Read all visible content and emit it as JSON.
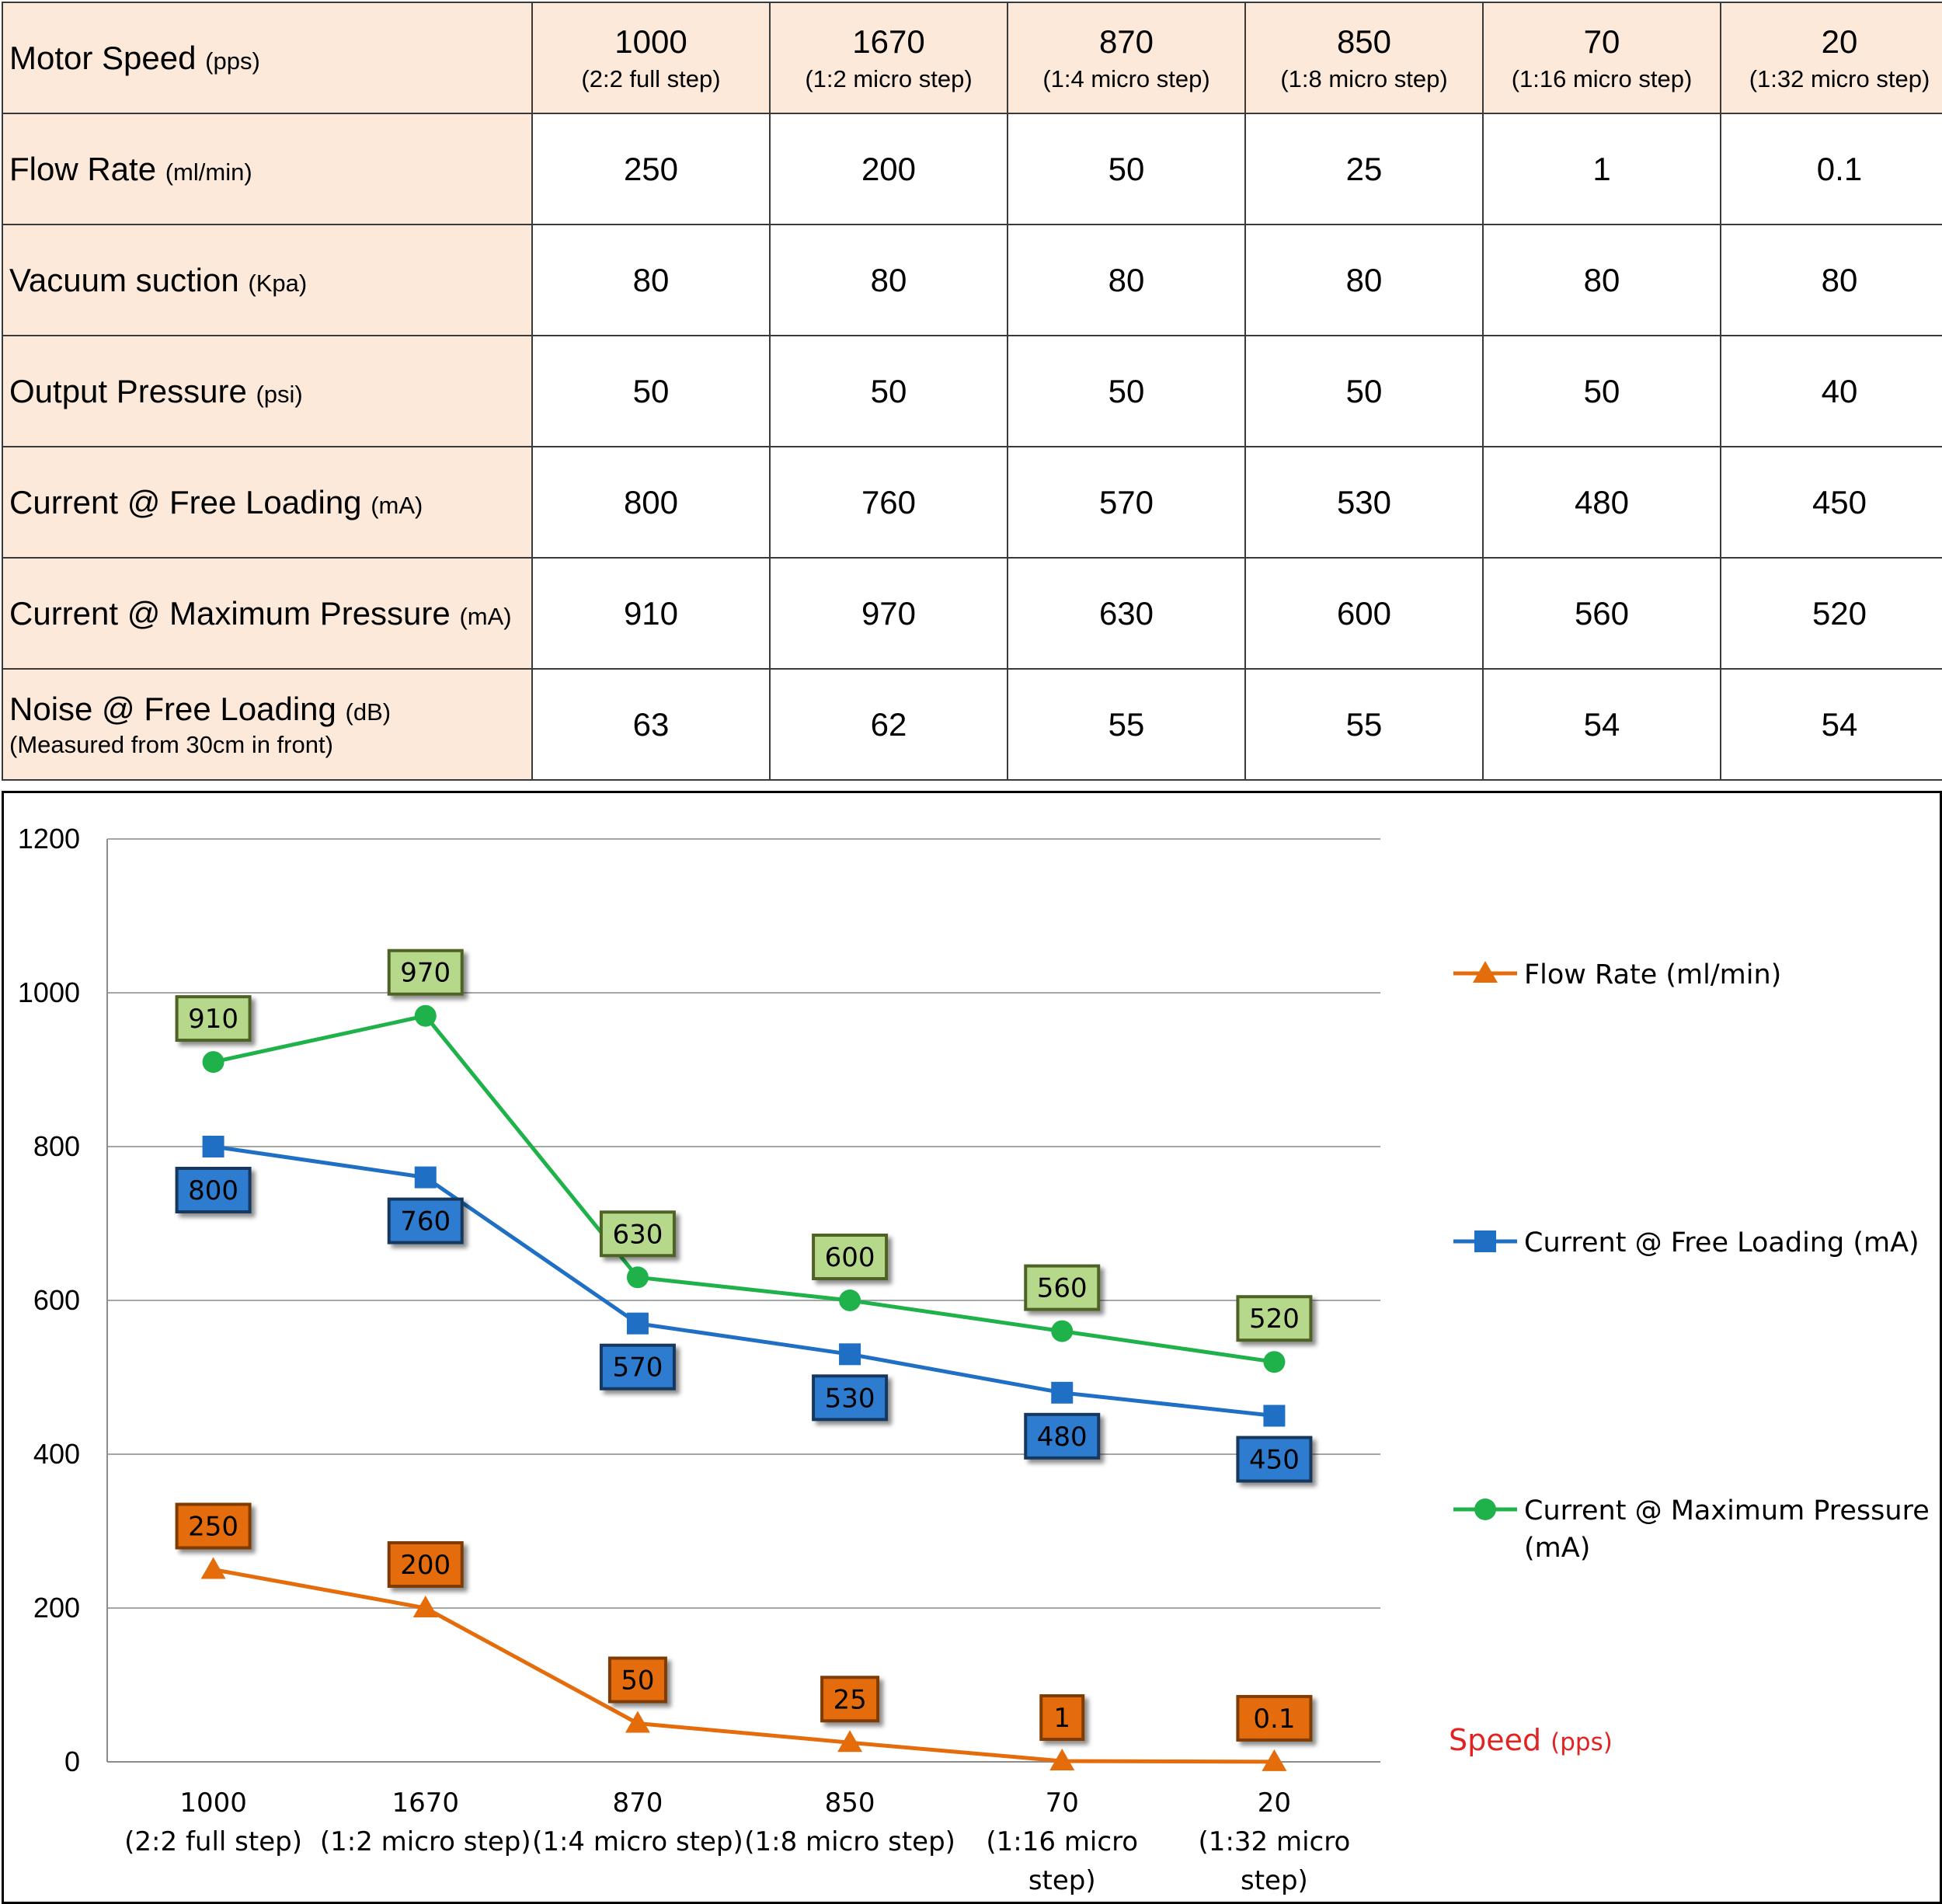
{
  "table": {
    "columns": [
      {
        "speed": "1000",
        "mode": "(2:2 full step)"
      },
      {
        "speed": "1670",
        "mode": "(1:2 micro step)"
      },
      {
        "speed": "870",
        "mode": "(1:4 micro step)"
      },
      {
        "speed": "850",
        "mode": "(1:8 micro step)"
      },
      {
        "speed": "70",
        "mode": "(1:16 micro step)"
      },
      {
        "speed": "20",
        "mode": "(1:32 micro step)"
      }
    ],
    "speed_row": {
      "label": "Motor Speed",
      "unit": "(pps)"
    },
    "rows": [
      {
        "label": "Flow Rate",
        "unit": "(ml/min)",
        "values": [
          "250",
          "200",
          "50",
          "25",
          "1",
          "0.1"
        ]
      },
      {
        "label": "Vacuum suction",
        "unit": "(Kpa)",
        "values": [
          "80",
          "80",
          "80",
          "80",
          "80",
          "80"
        ]
      },
      {
        "label": "Output Pressure",
        "unit": "(psi)",
        "values": [
          "50",
          "50",
          "50",
          "50",
          "50",
          "40"
        ]
      },
      {
        "label": "Current @ Free Loading",
        "unit": "(mA)",
        "values": [
          "800",
          "760",
          "570",
          "530",
          "480",
          "450"
        ]
      },
      {
        "label": "Current @ Maximum Pressure",
        "unit": "(mA)",
        "values": [
          "910",
          "970",
          "630",
          "600",
          "560",
          "520"
        ]
      },
      {
        "label": "Noise @ Free Loading",
        "unit": "(dB)",
        "note": "(Measured from 30cm in front)",
        "values": [
          "63",
          "62",
          "55",
          "55",
          "54",
          "54"
        ]
      }
    ]
  },
  "chart_data": {
    "type": "line",
    "categories": [
      [
        "1000",
        "(2:2 full step)"
      ],
      [
        "1670",
        "(1:2 micro step)"
      ],
      [
        "870",
        "(1:4 micro step)"
      ],
      [
        "850",
        "(1:8 micro step)"
      ],
      [
        "70",
        "(1:16 micro",
        "step)"
      ],
      [
        "20",
        "(1:32 micro",
        "step)"
      ]
    ],
    "yticks": [
      "0",
      "200",
      "400",
      "600",
      "800",
      "1000",
      "1200"
    ],
    "ylim": [
      0,
      1200
    ],
    "grid": true,
    "legend_position": "right",
    "axis_title": {
      "text": "Speed",
      "unit": "(pps)"
    },
    "series": [
      {
        "name": "Flow Rate (ml/min)",
        "name_lines": [
          "Flow Rate (ml/min)"
        ],
        "marker": "triangle",
        "color": "#e46c0a",
        "label_fill": "#e46c0a",
        "label_border": "#7f3b05",
        "label_text": "#000000",
        "values": [
          250,
          200,
          50,
          25,
          1,
          0.1
        ],
        "labels": [
          "250",
          "200",
          "50",
          "25",
          "1",
          "0.1"
        ],
        "label_pos": "above"
      },
      {
        "name": "Current @ Free Loading (mA)",
        "name_lines": [
          "Current @ Free Loading (mA)"
        ],
        "marker": "square",
        "color": "#1f6fc4",
        "label_fill": "#2e7bd0",
        "label_border": "#17375e",
        "label_text": "#000000",
        "values": [
          800,
          760,
          570,
          530,
          480,
          450
        ],
        "labels": [
          "800",
          "760",
          "570",
          "530",
          "480",
          "450"
        ],
        "label_pos": "below"
      },
      {
        "name": "Current @ Maximum Pressure (mA)",
        "name_lines": [
          "Current @ Maximum Pressure",
          "(mA)"
        ],
        "marker": "circle",
        "color": "#1fb14a",
        "label_fill": "#b5d88a",
        "label_border": "#4f6228",
        "label_text": "#000000",
        "values": [
          910,
          970,
          630,
          600,
          560,
          520
        ],
        "labels": [
          "910",
          "970",
          "630",
          "600",
          "560",
          "520"
        ],
        "label_pos": "above"
      }
    ]
  }
}
